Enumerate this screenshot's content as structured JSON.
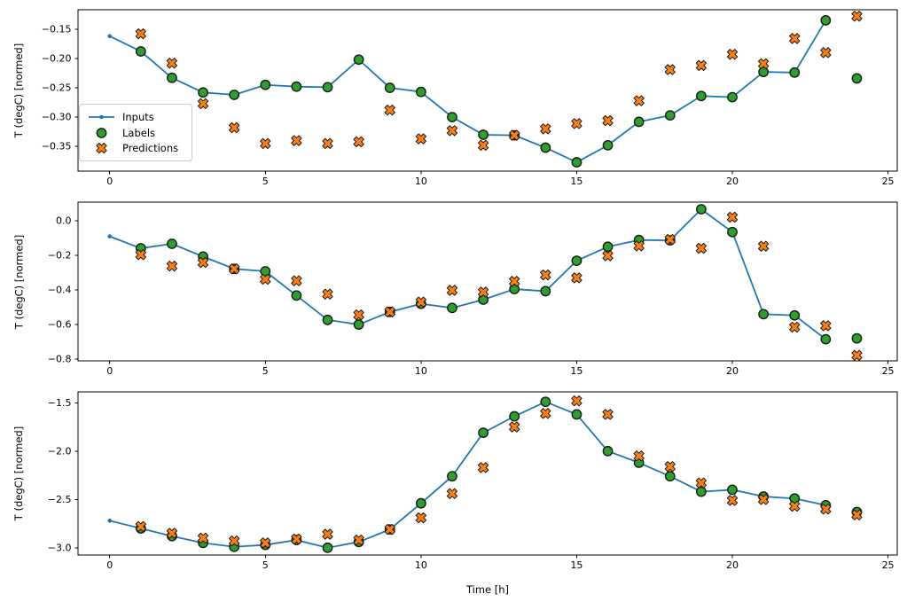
{
  "figure": {
    "xlabel": "Time [h]",
    "ylabel": "T (degC) [normed]"
  },
  "legend": {
    "items": [
      {
        "label": "Inputs",
        "marker": "line-with-dot",
        "color": "#1f77b4"
      },
      {
        "label": "Labels",
        "marker": "circle",
        "color": "#2ca02c"
      },
      {
        "label": "Predictions",
        "marker": "x-cross",
        "color": "#ff7f0e"
      }
    ]
  },
  "colors": {
    "inputs_line": "#1f77b4",
    "labels_marker": "#2ca02c",
    "predictions_marker": "#ff7f0e",
    "marker_edge": "#1a1a1a",
    "axis": "#000000",
    "tick_text": "#000000",
    "legend_border": "#cccccc",
    "background": "#ffffff"
  },
  "chart_data": [
    {
      "type": "line+scatter",
      "subplot": "top",
      "ylabel": "T (degC) [normed]",
      "xlim": [
        -1.017,
        25.297
      ],
      "ylim": [
        -0.392,
        -0.117
      ],
      "xticks": [
        0,
        5,
        10,
        15,
        20,
        25
      ],
      "xtick_labels": [
        "0",
        "5",
        "10",
        "15",
        "20",
        "25"
      ],
      "yticks": [
        -0.15,
        -0.2,
        -0.25,
        -0.3,
        -0.35
      ],
      "ytick_labels": [
        "−0.15",
        "−0.20",
        "−0.25",
        "−0.30",
        "−0.35"
      ],
      "grid": false,
      "series": [
        {
          "name": "Inputs",
          "style": "line",
          "x": [
            0,
            1,
            2,
            3,
            4,
            5,
            6,
            7,
            8,
            9,
            10,
            11,
            12,
            13,
            14,
            15,
            16,
            17,
            18,
            19,
            20,
            21,
            22,
            23
          ],
          "y": [
            -0.162,
            -0.188,
            -0.233,
            -0.258,
            -0.262,
            -0.245,
            -0.248,
            -0.249,
            -0.202,
            -0.25,
            -0.257,
            -0.3,
            -0.33,
            -0.331,
            -0.352,
            -0.377,
            -0.348,
            -0.308,
            -0.297,
            -0.264,
            -0.266,
            -0.223,
            -0.224,
            -0.135
          ]
        },
        {
          "name": "Labels",
          "style": "circles",
          "x": [
            1,
            2,
            3,
            4,
            5,
            6,
            7,
            8,
            9,
            10,
            11,
            12,
            13,
            14,
            15,
            16,
            17,
            18,
            19,
            20,
            21,
            22,
            23,
            24
          ],
          "y": [
            -0.188,
            -0.233,
            -0.258,
            -0.262,
            -0.245,
            -0.248,
            -0.249,
            -0.202,
            -0.25,
            -0.257,
            -0.3,
            -0.33,
            -0.331,
            -0.352,
            -0.377,
            -0.348,
            -0.308,
            -0.297,
            -0.264,
            -0.266,
            -0.223,
            -0.224,
            -0.135,
            -0.234
          ]
        },
        {
          "name": "Predictions",
          "style": "x-markers",
          "x": [
            1,
            2,
            3,
            4,
            5,
            6,
            7,
            8,
            9,
            10,
            11,
            12,
            13,
            14,
            15,
            16,
            17,
            18,
            19,
            20,
            21,
            22,
            23,
            24
          ],
          "y": [
            -0.158,
            -0.208,
            -0.277,
            -0.318,
            -0.345,
            -0.34,
            -0.345,
            -0.342,
            -0.288,
            -0.337,
            -0.323,
            -0.348,
            -0.331,
            -0.32,
            -0.311,
            -0.306,
            -0.272,
            -0.219,
            -0.212,
            -0.193,
            -0.209,
            -0.166,
            -0.19,
            -0.128
          ]
        }
      ]
    },
    {
      "type": "line+scatter",
      "subplot": "middle",
      "ylabel": "T (degC) [normed]",
      "xlim": [
        -1.017,
        25.297
      ],
      "ylim": [
        -0.81,
        0.108
      ],
      "xticks": [
        0,
        5,
        10,
        15,
        20,
        25
      ],
      "xtick_labels": [
        "0",
        "5",
        "10",
        "15",
        "20",
        "25"
      ],
      "yticks": [
        0.0,
        -0.2,
        -0.4,
        -0.6,
        -0.8
      ],
      "ytick_labels": [
        "0.0",
        "−0.2",
        "−0.4",
        "−0.6",
        "−0.8"
      ],
      "grid": false,
      "series": [
        {
          "name": "Inputs",
          "style": "line",
          "x": [
            0,
            1,
            2,
            3,
            4,
            5,
            6,
            7,
            8,
            9,
            10,
            11,
            12,
            13,
            14,
            15,
            16,
            17,
            18,
            19,
            20,
            21,
            22,
            23
          ],
          "y": [
            -0.09,
            -0.159,
            -0.133,
            -0.207,
            -0.278,
            -0.292,
            -0.432,
            -0.573,
            -0.6,
            -0.527,
            -0.48,
            -0.504,
            -0.456,
            -0.395,
            -0.407,
            -0.231,
            -0.15,
            -0.111,
            -0.113,
            0.067,
            -0.065,
            -0.54,
            -0.547,
            -0.685
          ]
        },
        {
          "name": "Labels",
          "style": "circles",
          "x": [
            1,
            2,
            3,
            4,
            5,
            6,
            7,
            8,
            9,
            10,
            11,
            12,
            13,
            14,
            15,
            16,
            17,
            18,
            19,
            20,
            21,
            22,
            23,
            24
          ],
          "y": [
            -0.159,
            -0.133,
            -0.207,
            -0.278,
            -0.292,
            -0.432,
            -0.573,
            -0.6,
            -0.527,
            -0.48,
            -0.504,
            -0.456,
            -0.395,
            -0.407,
            -0.231,
            -0.15,
            -0.111,
            -0.113,
            0.067,
            -0.065,
            -0.54,
            -0.547,
            -0.685,
            -0.68
          ]
        },
        {
          "name": "Predictions",
          "style": "x-markers",
          "x": [
            1,
            2,
            3,
            4,
            5,
            6,
            7,
            8,
            9,
            10,
            11,
            12,
            13,
            14,
            15,
            16,
            17,
            18,
            19,
            20,
            21,
            22,
            23,
            24
          ],
          "y": [
            -0.196,
            -0.262,
            -0.241,
            -0.278,
            -0.338,
            -0.347,
            -0.424,
            -0.544,
            -0.527,
            -0.47,
            -0.402,
            -0.412,
            -0.35,
            -0.313,
            -0.33,
            -0.202,
            -0.145,
            -0.108,
            -0.159,
            0.021,
            -0.147,
            -0.615,
            -0.607,
            -0.778
          ]
        }
      ]
    },
    {
      "type": "line+scatter",
      "subplot": "bottom",
      "ylabel": "T (degC) [normed]",
      "xlabel": "Time [h]",
      "xlim": [
        -1.017,
        25.297
      ],
      "ylim": [
        -3.075,
        -1.387
      ],
      "xticks": [
        0,
        5,
        10,
        15,
        20,
        25
      ],
      "xtick_labels": [
        "0",
        "5",
        "10",
        "15",
        "20",
        "25"
      ],
      "yticks": [
        -1.5,
        -2.0,
        -2.5,
        -3.0
      ],
      "ytick_labels": [
        "−1.5",
        "−2.0",
        "−2.5",
        "−3.0"
      ],
      "grid": false,
      "series": [
        {
          "name": "Inputs",
          "style": "line",
          "x": [
            0,
            1,
            2,
            3,
            4,
            5,
            6,
            7,
            8,
            9,
            10,
            11,
            12,
            13,
            14,
            15,
            16,
            17,
            18,
            19,
            20,
            21,
            22,
            23
          ],
          "y": [
            -2.72,
            -2.8,
            -2.88,
            -2.95,
            -2.99,
            -2.97,
            -2.92,
            -3.0,
            -2.94,
            -2.81,
            -2.54,
            -2.26,
            -1.81,
            -1.64,
            -1.49,
            -1.62,
            -2.0,
            -2.12,
            -2.26,
            -2.42,
            -2.4,
            -2.47,
            -2.49,
            -2.56
          ]
        },
        {
          "name": "Labels",
          "style": "circles",
          "x": [
            1,
            2,
            3,
            4,
            5,
            6,
            7,
            8,
            9,
            10,
            11,
            12,
            13,
            14,
            15,
            16,
            17,
            18,
            19,
            20,
            21,
            22,
            23,
            24
          ],
          "y": [
            -2.8,
            -2.88,
            -2.95,
            -2.99,
            -2.97,
            -2.92,
            -3.0,
            -2.94,
            -2.81,
            -2.54,
            -2.26,
            -1.81,
            -1.64,
            -1.49,
            -1.62,
            -2.0,
            -2.12,
            -2.26,
            -2.42,
            -2.4,
            -2.47,
            -2.49,
            -2.56,
            -2.63
          ]
        },
        {
          "name": "Predictions",
          "style": "x-markers",
          "x": [
            1,
            2,
            3,
            4,
            5,
            6,
            7,
            8,
            9,
            10,
            11,
            12,
            13,
            14,
            15,
            16,
            17,
            18,
            19,
            20,
            21,
            22,
            23,
            24
          ],
          "y": [
            -2.78,
            -2.85,
            -2.9,
            -2.93,
            -2.95,
            -2.91,
            -2.86,
            -2.92,
            -2.81,
            -2.69,
            -2.44,
            -2.17,
            -1.75,
            -1.61,
            -1.48,
            -1.62,
            -2.05,
            -2.16,
            -2.33,
            -2.51,
            -2.5,
            -2.57,
            -2.6,
            -2.66
          ]
        }
      ]
    }
  ]
}
